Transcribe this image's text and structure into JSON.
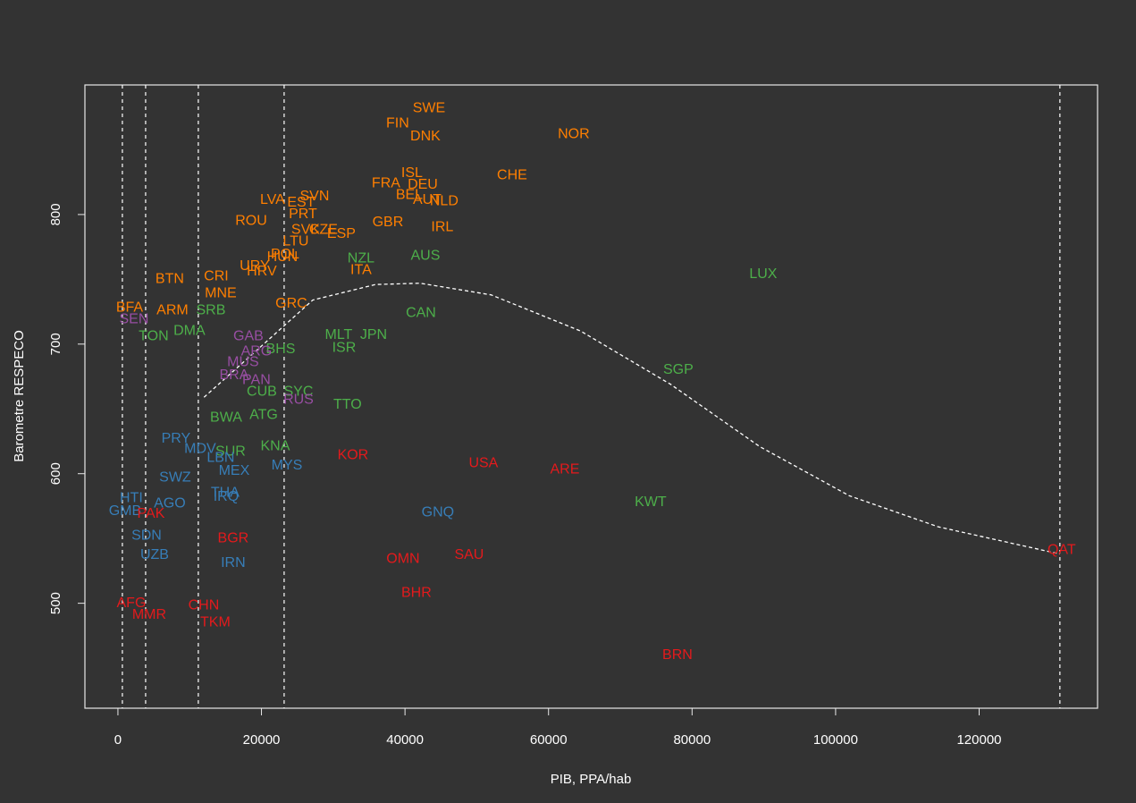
{
  "chart_data": {
    "type": "scatter",
    "x_label": "PIB, PPA/hab",
    "y_label": "Barometre RESPECO",
    "xlim": [
      -4600,
      136500
    ],
    "ylim": [
      419,
      900
    ],
    "xticks": [
      0,
      20000,
      40000,
      60000,
      80000,
      100000,
      120000
    ],
    "yticks": [
      500,
      600,
      700,
      800
    ],
    "vlines": [
      620,
      3860,
      11200,
      23160,
      131250
    ],
    "curve": {
      "x": [
        12000,
        19700,
        27150,
        35900,
        42100,
        52000,
        64500,
        77000,
        89400,
        101900,
        114300,
        131250
      ],
      "y": [
        659,
        697,
        734,
        746,
        747,
        738,
        710,
        669,
        621,
        583,
        559,
        538
      ]
    },
    "series": [
      {
        "color": "#ff7f00",
        "labels": [
          "SWE",
          "FIN",
          "DNK",
          "NOR",
          "CHE",
          "ISL",
          "FRA",
          "DEU",
          "BEL",
          "AUT",
          "NLD",
          "LVA",
          "SVN",
          "EST",
          "PRT",
          "ROU",
          "GBR",
          "IRL",
          "SVK",
          "CZE",
          "ESP",
          "LTU",
          "POL",
          "HUN",
          "URY",
          "HRV",
          "ITA",
          "BTN",
          "CRI",
          "MNE",
          "GRC",
          "BFA",
          "ARM"
        ],
        "x": [
          43340,
          38980,
          42840,
          63510,
          54920,
          40970,
          37360,
          42470,
          40600,
          43090,
          45450,
          21540,
          27400,
          25530,
          25780,
          18560,
          37610,
          45200,
          26150,
          28640,
          31130,
          24780,
          23290,
          22910,
          19050,
          20050,
          33870,
          7220,
          13700,
          14320,
          24160,
          1620,
          7600
        ],
        "y": [
          882,
          870,
          860,
          862,
          830,
          832,
          824,
          823,
          815,
          811,
          810,
          811,
          814,
          809,
          800,
          795,
          794,
          790,
          788,
          788,
          785,
          779,
          769,
          767,
          760,
          756,
          757,
          750,
          752,
          739,
          731,
          728,
          726
        ]
      },
      {
        "color": "#4daf4a",
        "labels": [
          "NZL",
          "AUS",
          "LUX",
          "CAN",
          "SRB",
          "MLT",
          "JPN",
          "ISR",
          "BHS",
          "SGP",
          "TTO",
          "CUB",
          "SYC",
          "KNA",
          "ATG",
          "BWA",
          "KWT",
          "SUR",
          "TON",
          "DMA"
        ],
        "x": [
          33870,
          42840,
          89910,
          42220,
          12950,
          30760,
          35620,
          31510,
          22670,
          78080,
          32000,
          20050,
          25160,
          21920,
          20300,
          15070,
          74220,
          15690,
          4980,
          9960
        ],
        "y": [
          766,
          768,
          754,
          724,
          726,
          707,
          707,
          697,
          696,
          680,
          653,
          663,
          663,
          621,
          645,
          643,
          578,
          617,
          706,
          710
        ]
      },
      {
        "color": "#984ea3",
        "labels": [
          "GAB",
          "ARG",
          "MUS",
          "PAN",
          "RUS",
          "BRA",
          "SEN"
        ],
        "x": [
          18180,
          19300,
          17430,
          19300,
          25160,
          16190,
          2240
        ],
        "y": [
          706,
          694,
          686,
          672,
          657,
          676,
          719
        ]
      },
      {
        "color": "#377eb8",
        "labels": [
          "GNQ",
          "MYS",
          "MEX",
          "LBN",
          "THA",
          "IRQ",
          "IRN",
          "SDN",
          "UZB",
          "AGO",
          "SWZ",
          "MDV",
          "GMB",
          "HTI",
          "PRY"
        ],
        "x": [
          44580,
          23540,
          16190,
          14320,
          14940,
          15070,
          16060,
          3990,
          5110,
          7220,
          7970,
          11460,
          1000,
          1870,
          8090
        ],
        "y": [
          570,
          606,
          602,
          612,
          585,
          582,
          531,
          552,
          537,
          577,
          597,
          619,
          571,
          581,
          627
        ]
      },
      {
        "color": "#e41a1c",
        "labels": [
          "QAT",
          "KOR",
          "USA",
          "ARE",
          "SAU",
          "OMN",
          "BHR",
          "BRN",
          "BGR",
          "CHN",
          "TKM",
          "AFG",
          "MMR",
          "PAK"
        ],
        "x": [
          131500,
          32750,
          50930,
          62270,
          48940,
          39730,
          41590,
          77960,
          16060,
          11960,
          13570,
          1870,
          4360,
          4610
        ],
        "y": [
          541,
          614,
          608,
          603,
          537,
          534,
          508,
          460,
          550,
          498,
          485,
          500,
          491,
          569
        ]
      }
    ]
  }
}
